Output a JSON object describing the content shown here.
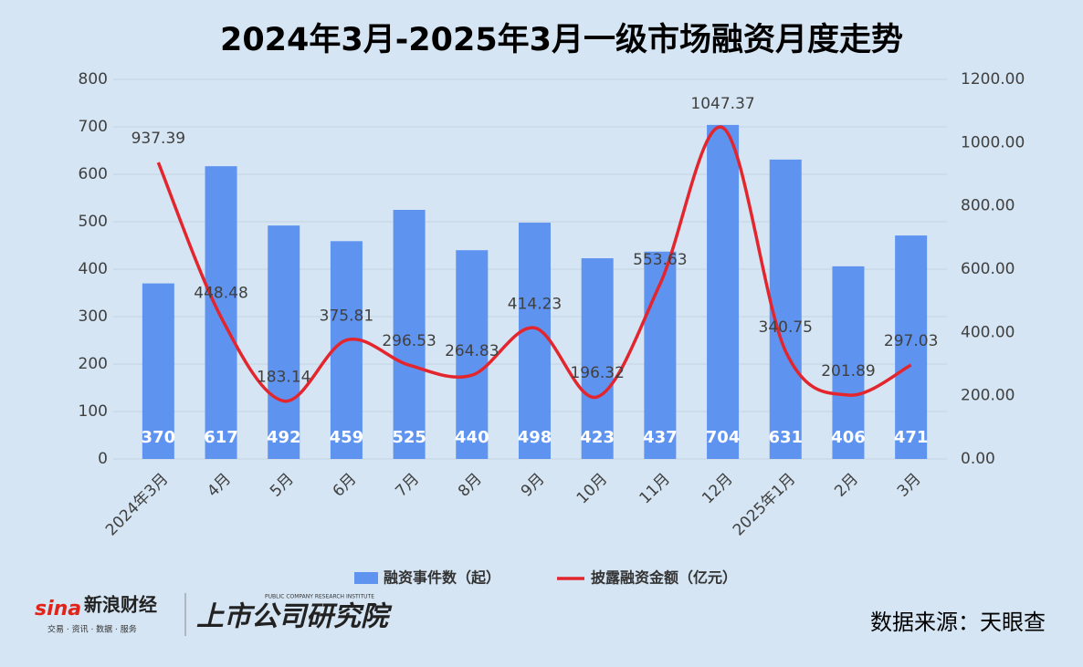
{
  "chart_data": {
    "type": "combo",
    "title": "2024年3月-2025年3月一级市场融资月度走势",
    "categories": [
      "2024年3月",
      "4月",
      "5月",
      "6月",
      "7月",
      "8月",
      "9月",
      "10月",
      "11月",
      "12月",
      "2025年1月",
      "2月",
      "3月"
    ],
    "series": [
      {
        "name": "融资事件数（起）",
        "type": "bar",
        "color": "#5f93f0",
        "axis": "y",
        "values": [
          370,
          617,
          492,
          459,
          525,
          440,
          498,
          423,
          437,
          704,
          631,
          406,
          471
        ]
      },
      {
        "name": "披露融资金额（亿元）",
        "type": "line",
        "color": "#e3262e",
        "axis": "y2",
        "values": [
          937.39,
          448.48,
          183.14,
          375.81,
          296.53,
          264.83,
          414.23,
          196.32,
          553.63,
          1047.37,
          340.75,
          201.89,
          297.03
        ]
      }
    ],
    "ylim": [
      0,
      800
    ],
    "yticks": [
      0,
      100,
      200,
      300,
      400,
      500,
      600,
      700,
      800
    ],
    "y2lim": [
      0,
      1200
    ],
    "y2ticks": [
      {
        "value": 0,
        "label": "0.00"
      },
      {
        "value": 200,
        "label": "200.00"
      },
      {
        "value": 400,
        "label": "400.00"
      },
      {
        "value": 600,
        "label": "600.00"
      },
      {
        "value": 800,
        "label": "800.00"
      },
      {
        "value": 1000,
        "label": "1000.00"
      },
      {
        "value": 1200,
        "label": "1200.00"
      }
    ],
    "grid": true,
    "legend": "bottom"
  },
  "footer": {
    "brand": "新浪财经",
    "brand_sub": "交易 · 资讯 · 数据 · 服务",
    "institute": "上市公司研究院",
    "institute_en": "PUBLIC COMPANY RESEARCH INSTITUTE",
    "source": "数据来源：天眼查"
  }
}
